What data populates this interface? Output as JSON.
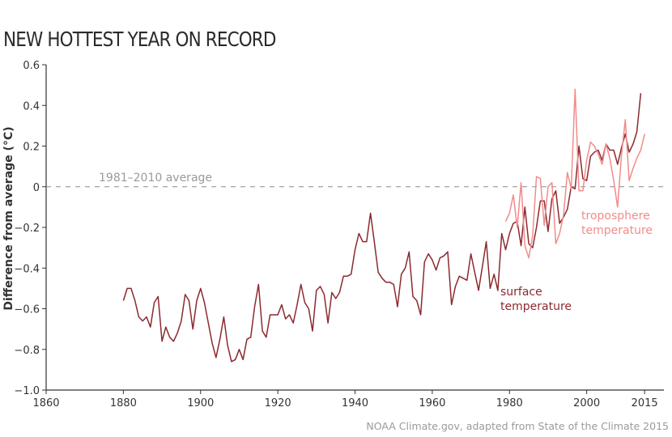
{
  "title": "NEW HOTTEST YEAR ON RECORD",
  "credit": "NOAA Climate.gov, adapted from State of the Climate 2015",
  "chart_data": {
    "type": "line",
    "title": "NEW HOTTEST YEAR ON RECORD",
    "xlabel": "",
    "ylabel": "Difference from average (°C)",
    "xlim": [
      1860,
      2020
    ],
    "ylim": [
      -1.0,
      0.6
    ],
    "xticks": [
      1860,
      1880,
      1900,
      1920,
      1940,
      1960,
      1980,
      2000,
      2015
    ],
    "yticks": [
      -1.0,
      -0.8,
      -0.6,
      -0.4,
      -0.2,
      0,
      0.2,
      0.4,
      0.6
    ],
    "ytick_labels": [
      "−1.0",
      "−0.8",
      "−0.6",
      "−0.4",
      "−0.2",
      "0",
      "0.2",
      "0.4",
      "0.6"
    ],
    "grid": false,
    "reference_line": {
      "value": 0,
      "label": "1981–2010 average",
      "style": "dashed",
      "color": "#8a8a8a"
    },
    "series": [
      {
        "name": "surface temperature",
        "color": "#8b2a2f",
        "start_year": 1880,
        "values": [
          -0.56,
          -0.5,
          -0.5,
          -0.56,
          -0.64,
          -0.66,
          -0.64,
          -0.69,
          -0.57,
          -0.54,
          -0.76,
          -0.69,
          -0.74,
          -0.76,
          -0.72,
          -0.66,
          -0.53,
          -0.56,
          -0.7,
          -0.56,
          -0.5,
          -0.57,
          -0.67,
          -0.77,
          -0.84,
          -0.75,
          -0.64,
          -0.78,
          -0.86,
          -0.85,
          -0.8,
          -0.85,
          -0.75,
          -0.74,
          -0.59,
          -0.48,
          -0.71,
          -0.74,
          -0.63,
          -0.63,
          -0.63,
          -0.58,
          -0.65,
          -0.63,
          -0.67,
          -0.58,
          -0.48,
          -0.57,
          -0.6,
          -0.71,
          -0.51,
          -0.49,
          -0.53,
          -0.67,
          -0.52,
          -0.55,
          -0.52,
          -0.44,
          -0.44,
          -0.43,
          -0.31,
          -0.23,
          -0.27,
          -0.27,
          -0.13,
          -0.27,
          -0.42,
          -0.45,
          -0.47,
          -0.47,
          -0.48,
          -0.59,
          -0.43,
          -0.4,
          -0.32,
          -0.54,
          -0.56,
          -0.63,
          -0.37,
          -0.33,
          -0.36,
          -0.41,
          -0.35,
          -0.34,
          -0.32,
          -0.58,
          -0.49,
          -0.44,
          -0.45,
          -0.46,
          -0.33,
          -0.42,
          -0.51,
          -0.39,
          -0.27,
          -0.5,
          -0.43,
          -0.51,
          -0.23,
          -0.31,
          -0.23,
          -0.18,
          -0.17,
          -0.29,
          -0.1,
          -0.28,
          -0.3,
          -0.2,
          -0.07,
          -0.07,
          -0.22,
          -0.06,
          -0.02,
          -0.18,
          -0.15,
          -0.11,
          0.0,
          -0.01,
          0.2,
          0.04,
          0.03,
          0.15,
          0.17,
          0.18,
          0.13,
          0.21,
          0.18,
          0.18,
          0.11,
          0.19,
          0.26,
          0.17,
          0.21,
          0.27,
          0.46
        ]
      },
      {
        "name": "troposphere temperature",
        "color": "#f28b8b",
        "start_year": 1979,
        "values": [
          -0.17,
          -0.13,
          -0.04,
          -0.2,
          0.02,
          -0.29,
          -0.35,
          -0.24,
          0.05,
          0.04,
          -0.19,
          0.0,
          0.02,
          -0.28,
          -0.23,
          -0.14,
          0.07,
          -0.01,
          0.48,
          -0.02,
          -0.02,
          0.13,
          0.22,
          0.2,
          0.16,
          0.11,
          0.21,
          0.14,
          0.03,
          -0.1,
          0.15,
          0.33,
          0.03,
          0.09,
          0.14,
          0.18,
          0.26
        ]
      }
    ]
  },
  "annotations": {
    "reference_label": "1981–2010 average",
    "troposphere_line1": "troposphere",
    "troposphere_line2": "temperature",
    "surface_line1": "surface",
    "surface_line2": "temperature"
  }
}
